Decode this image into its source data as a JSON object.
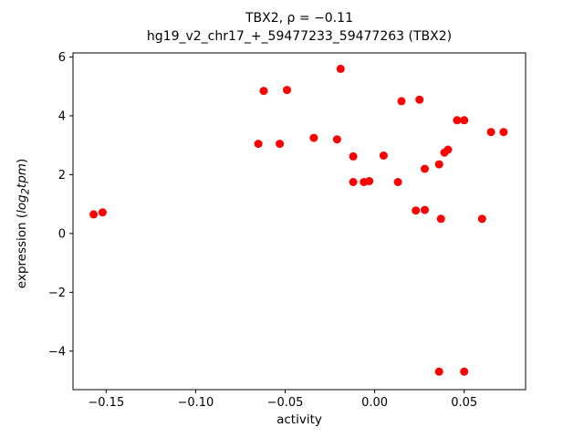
{
  "chart_data": {
    "type": "scatter",
    "title_line1": "TBX2, ρ = −0.11",
    "title_line2": "hg19_v2_chr17_+_59477233_59477263 (TBX2)",
    "xlabel": "activity",
    "ylabel": {
      "pre": "expression (",
      "func": "log",
      "sub": "2",
      "arg": "tpm",
      "post": ")"
    },
    "marker_color": "#ff0000",
    "axis_color": "#000000",
    "legend": "none",
    "grid": false,
    "xlim": [
      -0.1685,
      0.0843
    ],
    "ylim": [
      -5.31,
      6.14
    ],
    "xticks": [
      -0.15,
      -0.1,
      -0.05,
      0.0,
      0.05
    ],
    "xtick_labels": [
      "−0.15",
      "−0.10",
      "−0.05",
      "0.00",
      "0.05"
    ],
    "yticks": [
      -4,
      -2,
      0,
      2,
      4,
      6
    ],
    "ytick_labels": [
      "−4",
      "−2",
      "0",
      "2",
      "4",
      "6"
    ],
    "points": [
      [
        -0.157,
        0.65
      ],
      [
        -0.152,
        0.72
      ],
      [
        -0.065,
        3.05
      ],
      [
        -0.062,
        4.85
      ],
      [
        -0.053,
        3.05
      ],
      [
        -0.049,
        4.88
      ],
      [
        -0.034,
        3.25
      ],
      [
        -0.021,
        3.2
      ],
      [
        -0.019,
        5.6
      ],
      [
        -0.012,
        2.62
      ],
      [
        -0.012,
        1.75
      ],
      [
        -0.006,
        1.75
      ],
      [
        -0.003,
        1.78
      ],
      [
        0.005,
        2.65
      ],
      [
        0.013,
        1.75
      ],
      [
        0.015,
        4.5
      ],
      [
        0.023,
        0.78
      ],
      [
        0.025,
        4.55
      ],
      [
        0.028,
        0.8
      ],
      [
        0.028,
        2.2
      ],
      [
        0.036,
        2.35
      ],
      [
        0.036,
        -4.7
      ],
      [
        0.037,
        0.5
      ],
      [
        0.039,
        2.75
      ],
      [
        0.041,
        2.85
      ],
      [
        0.046,
        3.85
      ],
      [
        0.05,
        3.85
      ],
      [
        0.05,
        -4.7
      ],
      [
        0.06,
        0.5
      ],
      [
        0.065,
        3.45
      ],
      [
        0.072,
        3.45
      ]
    ]
  }
}
